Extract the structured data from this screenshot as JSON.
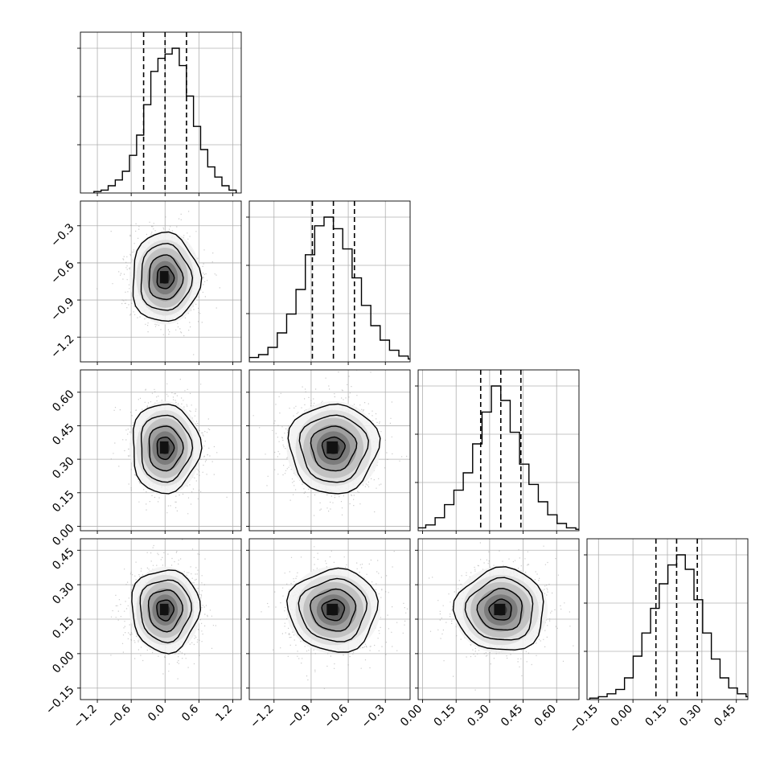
{
  "chart_data": {
    "type": "corner",
    "grid": true,
    "colors": {
      "line": "#000000",
      "grid": "#b0b0b0",
      "scatter": "#8a8a8a"
    },
    "params": [
      {
        "range": [
          -1.5,
          1.35
        ],
        "ticks": [
          -1.2,
          -0.6,
          0.0,
          0.6,
          1.2
        ],
        "tick_labels": [
          "−1.2",
          "−0.6",
          "0.0",
          "0.6",
          "1.2"
        ],
        "mean": 0.0,
        "sigma": 0.3,
        "quantiles": [
          -0.38,
          0.0,
          0.38
        ]
      },
      {
        "range": [
          -1.4,
          -0.1
        ],
        "ticks": [
          -1.2,
          -0.9,
          -0.6,
          -0.3
        ],
        "tick_labels": [
          "−1.2",
          "−0.9",
          "−0.6",
          "−0.3"
        ],
        "mean": -0.72,
        "sigma": 0.18,
        "quantiles": [
          -0.89,
          -0.72,
          -0.55
        ]
      },
      {
        "range": [
          -0.02,
          0.7
        ],
        "ticks": [
          0.0,
          0.15,
          0.3,
          0.45,
          0.6
        ],
        "tick_labels": [
          "0.00",
          "0.15",
          "0.30",
          "0.45",
          "0.60"
        ],
        "mean": 0.35,
        "sigma": 0.1,
        "quantiles": [
          0.26,
          0.35,
          0.44
        ]
      },
      {
        "range": [
          -0.2,
          0.5
        ],
        "ticks": [
          -0.15,
          0.0,
          0.15,
          0.3,
          0.45
        ],
        "tick_labels": [
          "−0.15",
          "0.00",
          "0.15",
          "0.30",
          "0.45"
        ],
        "mean": 0.19,
        "sigma": 0.09,
        "quantiles": [
          0.1,
          0.19,
          0.28
        ]
      }
    ],
    "hist_counts": [
      [
        0.01,
        0.02,
        0.05,
        0.09,
        0.15,
        0.26,
        0.4,
        0.61,
        0.84,
        0.93,
        0.96,
        1.0,
        0.88,
        0.67,
        0.46,
        0.3,
        0.18,
        0.11,
        0.05,
        0.02
      ],
      [
        0.01,
        0.03,
        0.05,
        0.1,
        0.2,
        0.33,
        0.5,
        0.74,
        0.94,
        1.0,
        0.92,
        0.78,
        0.58,
        0.39,
        0.25,
        0.15,
        0.08,
        0.04,
        0.02,
        0.01
      ],
      [
        0.01,
        0.02,
        0.04,
        0.09,
        0.18,
        0.28,
        0.4,
        0.6,
        0.82,
        1.0,
        0.9,
        0.68,
        0.46,
        0.32,
        0.2,
        0.11,
        0.05,
        0.02,
        0.01,
        0.0
      ],
      [
        0.01,
        0.02,
        0.04,
        0.07,
        0.15,
        0.3,
        0.46,
        0.63,
        0.8,
        0.93,
        1.0,
        0.9,
        0.69,
        0.46,
        0.28,
        0.15,
        0.08,
        0.04,
        0.02,
        0.01
      ]
    ]
  }
}
